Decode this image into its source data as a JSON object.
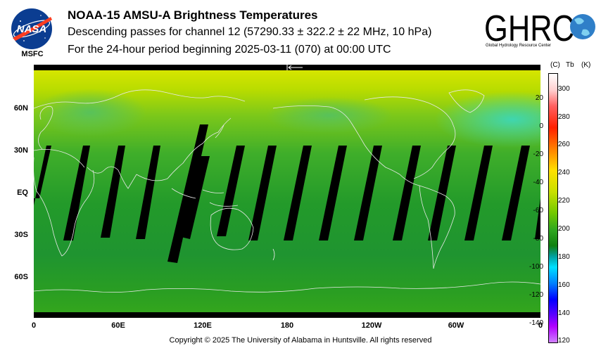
{
  "header": {
    "title": "NOAA-15 AMSU-A Brightness Temperatures",
    "subtitle": "Descending passes for channel 12 (57290.33 ± 322.2 ± 22 MHz, 10 hPa)",
    "period": "For the 24-hour period beginning 2025-03-11 (070) at 00:00 UTC"
  },
  "logos": {
    "nasa_label": "MSFC",
    "nasa_wordmark": "NASA",
    "ghrc_wordmark": "GHRC",
    "ghrc_subtitle": "Global Hydrology Resource Center"
  },
  "map": {
    "lat_labels": [
      "60N",
      "30N",
      "EQ",
      "30S",
      "60S"
    ],
    "lon_labels": [
      "0",
      "60E",
      "120E",
      "180",
      "120W",
      "60W",
      "0"
    ]
  },
  "colorbar": {
    "header_c": "(C)",
    "header_tb": "Tb",
    "header_k": "(K)",
    "celsius_labels": [
      "20",
      "0",
      "-20",
      "-40",
      "-60",
      "-80",
      "-100",
      "-120",
      "-140"
    ],
    "kelvin_labels": [
      "300",
      "280",
      "260",
      "240",
      "220",
      "200",
      "180",
      "160",
      "140",
      "120"
    ]
  },
  "footer": "Copyright © 2025 The University of Alabama in Huntsville.  All rights reserved"
}
